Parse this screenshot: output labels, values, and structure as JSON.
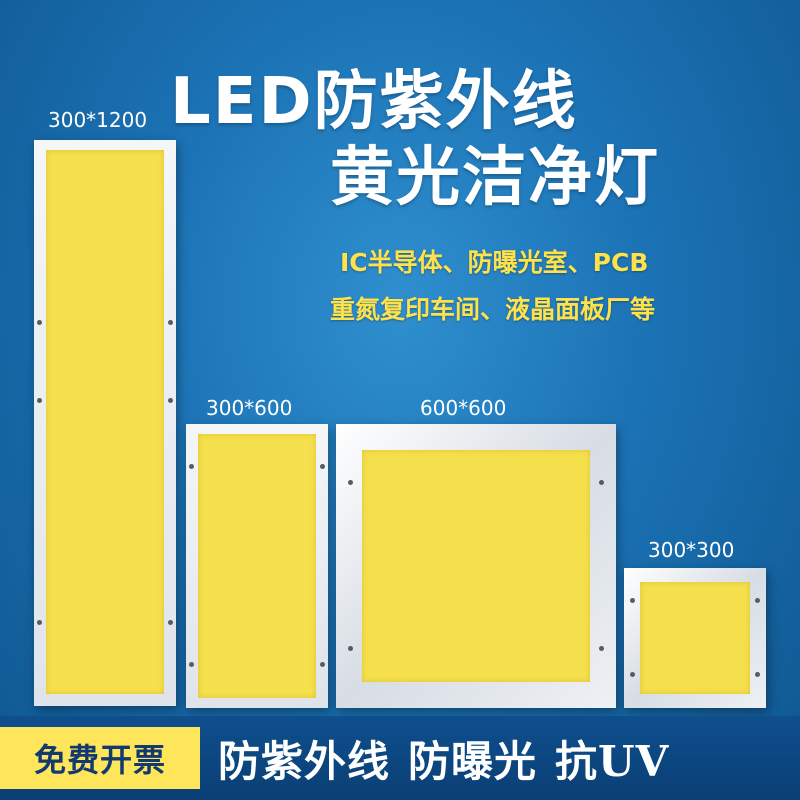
{
  "title": {
    "line1": "LED防紫外线",
    "line2": "黄光洁净灯"
  },
  "subtitle": {
    "line1": "IC半导体、防曝光室、PCB",
    "line2": "重氮复印车间、液晶面板厂等"
  },
  "panels": [
    {
      "size_label": "300*1200"
    },
    {
      "size_label": "300*600"
    },
    {
      "size_label": "600*600"
    },
    {
      "size_label": "300*300"
    }
  ],
  "bottom": {
    "badge": "免费开票",
    "features": [
      "防紫外线",
      "防曝光",
      "抗UV"
    ]
  },
  "colors": {
    "background": "#1b72b4",
    "panel_light": "#f5e04e",
    "badge": "#ffe55a",
    "subtitle": "#ffe14a"
  }
}
